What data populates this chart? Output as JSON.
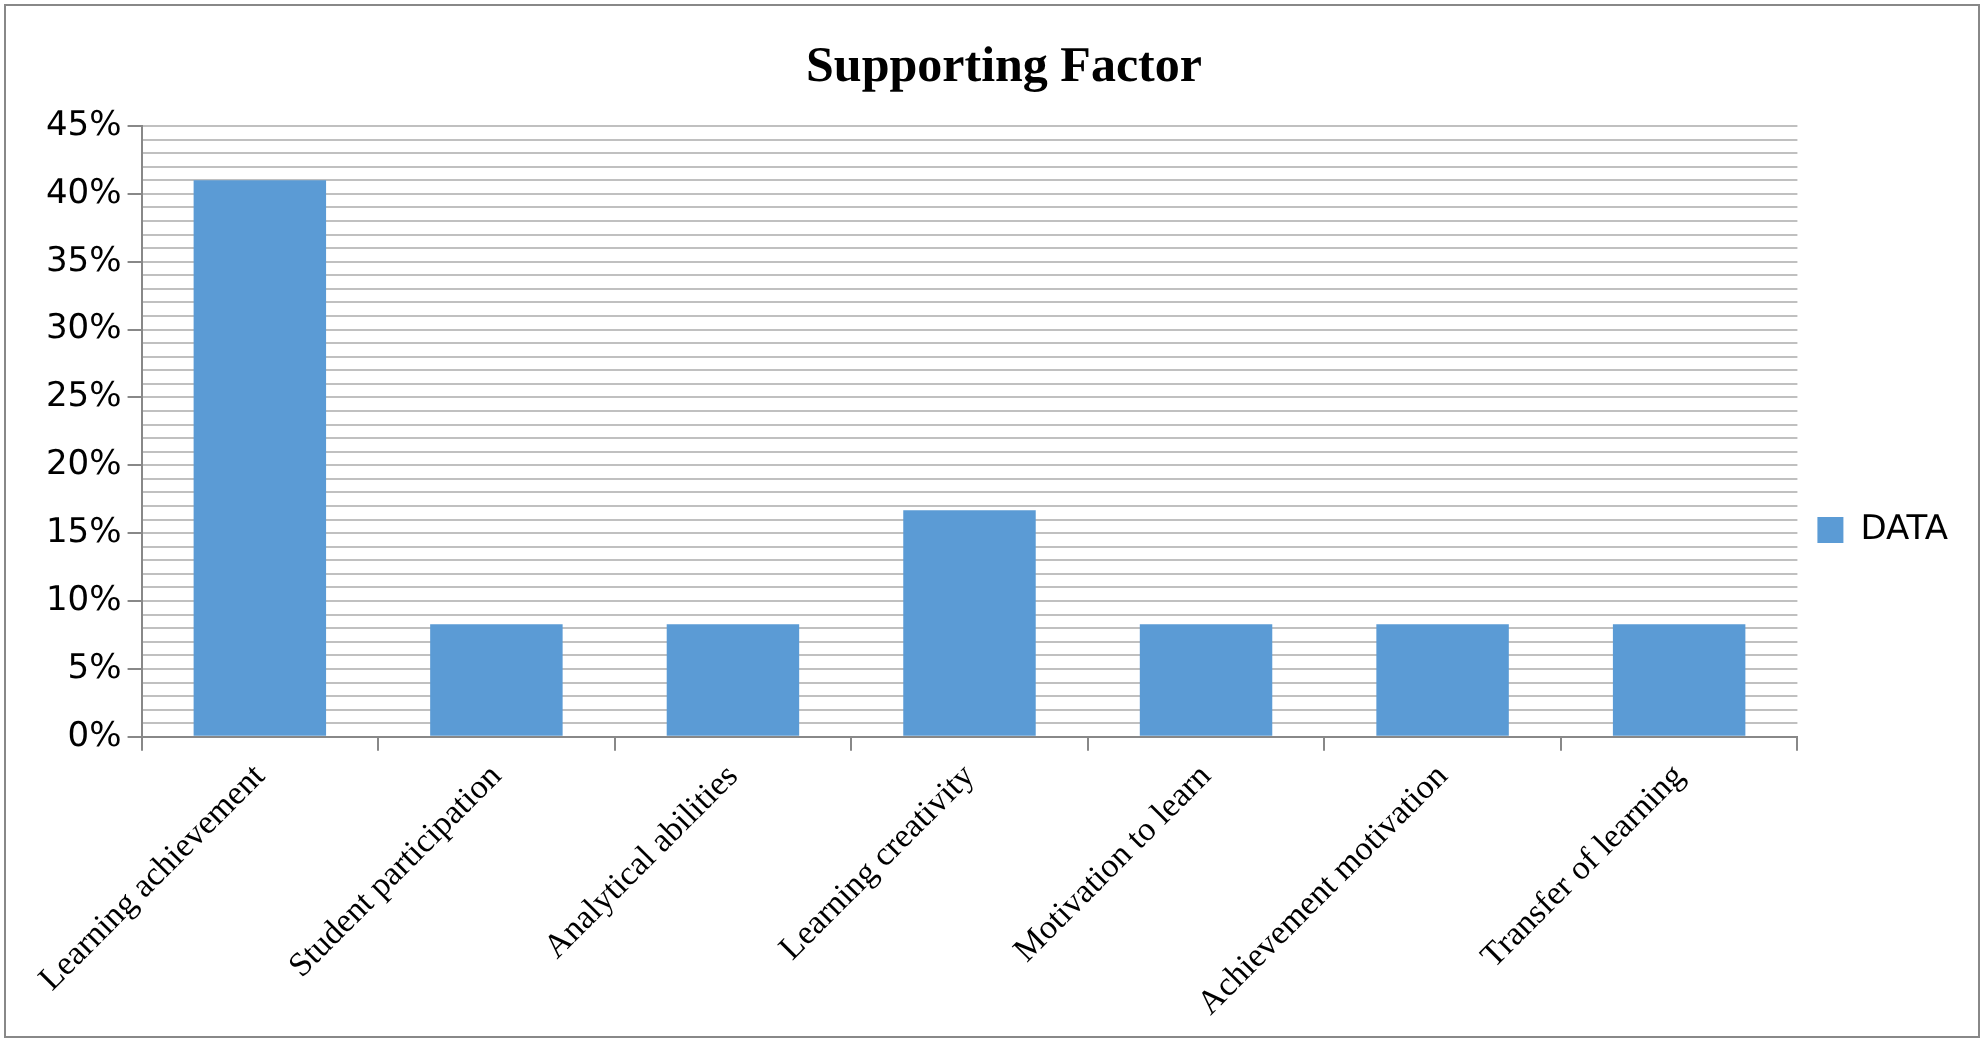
{
  "chart_data": {
    "type": "bar",
    "title": "Supporting Factor",
    "categories": [
      "Learning achievement",
      "Student participation",
      "Analytical abilities",
      "Learning creativity",
      "Motivation to learn",
      "Achievement motivation",
      "Transfer of learning"
    ],
    "series": [
      {
        "name": "DATA",
        "color": "#5b9bd5",
        "values": [
          41,
          8.3,
          8.3,
          16.7,
          8.3,
          8.3,
          8.3
        ]
      }
    ],
    "ylim": [
      0,
      45
    ],
    "yticks": [
      {
        "value": 0,
        "label": "0%"
      },
      {
        "value": 1,
        "label": null
      },
      {
        "value": 2,
        "label": null
      },
      {
        "value": 3,
        "label": null
      },
      {
        "value": 4,
        "label": null
      },
      {
        "value": 5,
        "label": "5%"
      },
      {
        "value": 6,
        "label": null
      },
      {
        "value": 7,
        "label": null
      },
      {
        "value": 8,
        "label": null
      },
      {
        "value": 9,
        "label": null
      },
      {
        "value": 10,
        "label": "10%"
      },
      {
        "value": 11,
        "label": null
      },
      {
        "value": 12,
        "label": null
      },
      {
        "value": 13,
        "label": null
      },
      {
        "value": 14,
        "label": null
      },
      {
        "value": 15,
        "label": "15%"
      },
      {
        "value": 16,
        "label": null
      },
      {
        "value": 17,
        "label": null
      },
      {
        "value": 18,
        "label": null
      },
      {
        "value": 19,
        "label": null
      },
      {
        "value": 20,
        "label": "20%"
      },
      {
        "value": 21,
        "label": null
      },
      {
        "value": 22,
        "label": null
      },
      {
        "value": 23,
        "label": null
      },
      {
        "value": 24,
        "label": null
      },
      {
        "value": 25,
        "label": "25%"
      },
      {
        "value": 26,
        "label": null
      },
      {
        "value": 27,
        "label": null
      },
      {
        "value": 28,
        "label": null
      },
      {
        "value": 29,
        "label": null
      },
      {
        "value": 30,
        "label": "30%"
      },
      {
        "value": 31,
        "label": null
      },
      {
        "value": 32,
        "label": null
      },
      {
        "value": 33,
        "label": null
      },
      {
        "value": 34,
        "label": null
      },
      {
        "value": 35,
        "label": "35%"
      },
      {
        "value": 36,
        "label": null
      },
      {
        "value": 37,
        "label": null
      },
      {
        "value": 38,
        "label": null
      },
      {
        "value": 39,
        "label": null
      },
      {
        "value": 40,
        "label": "40%"
      },
      {
        "value": 41,
        "label": null
      },
      {
        "value": 42,
        "label": null
      },
      {
        "value": 43,
        "label": null
      },
      {
        "value": 44,
        "label": null
      },
      {
        "value": 45,
        "label": "45%"
      }
    ],
    "grid": "y",
    "legend": "right"
  }
}
